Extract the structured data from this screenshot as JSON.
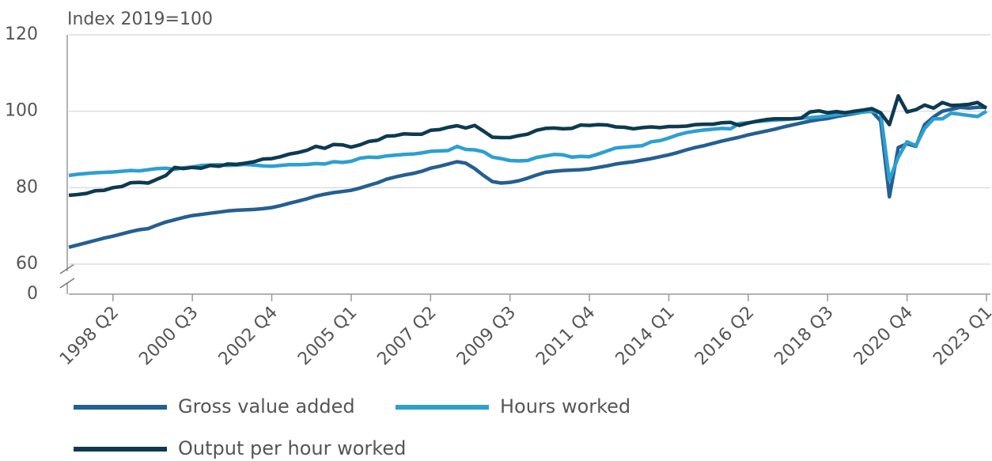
{
  "chart_data": {
    "type": "line",
    "ylabel": "Index 2019=100",
    "categories": [
      null,
      null,
      null,
      null,
      null,
      "1998 Q2",
      null,
      null,
      null,
      null,
      null,
      null,
      null,
      null,
      "2000 Q3",
      null,
      null,
      null,
      null,
      null,
      null,
      null,
      null,
      "2002 Q4",
      null,
      null,
      null,
      null,
      null,
      null,
      null,
      null,
      "2005 Q1",
      null,
      null,
      null,
      null,
      null,
      null,
      null,
      null,
      "2007 Q2",
      null,
      null,
      null,
      null,
      null,
      null,
      null,
      null,
      "2009 Q3",
      null,
      null,
      null,
      null,
      null,
      null,
      null,
      null,
      "2011 Q4",
      null,
      null,
      null,
      null,
      null,
      null,
      null,
      null,
      "2014 Q1",
      null,
      null,
      null,
      null,
      null,
      null,
      null,
      null,
      "2016 Q2",
      null,
      null,
      null,
      null,
      null,
      null,
      null,
      null,
      "2018 Q3",
      null,
      null,
      null,
      null,
      null,
      null,
      null,
      null,
      "2020 Q4",
      null,
      null,
      null,
      null,
      null,
      null,
      null,
      null,
      "2023 Q1"
    ],
    "series": [
      {
        "name": "Gross value added",
        "color": "#255f91",
        "values": [
          64.4,
          65,
          65.6,
          66.2,
          66.8,
          67.3,
          67.9,
          68.5,
          69,
          69.3,
          70.2,
          71,
          71.6,
          72.2,
          72.7,
          73,
          73.3,
          73.6,
          73.9,
          74.1,
          74.2,
          74.3,
          74.5,
          74.8,
          75.3,
          75.9,
          76.5,
          77.1,
          77.8,
          78.3,
          78.7,
          79,
          79.3,
          79.9,
          80.6,
          81.3,
          82.2,
          82.8,
          83.3,
          83.7,
          84.3,
          85.1,
          85.6,
          86.2,
          86.8,
          86.4,
          85,
          83.2,
          81.6,
          81.2,
          81.4,
          81.8,
          82.5,
          83.3,
          84,
          84.3,
          84.5,
          84.6,
          84.7,
          84.9,
          85.3,
          85.7,
          86.2,
          86.5,
          86.8,
          87.2,
          87.6,
          88.1,
          88.6,
          89.2,
          89.9,
          90.5,
          91,
          91.6,
          92.2,
          92.7,
          93.2,
          93.8,
          94.3,
          94.8,
          95.3,
          95.9,
          96.4,
          96.9,
          97.4,
          97.8,
          98.1,
          98.6,
          99,
          99.4,
          99.8,
          100,
          97.5,
          77.6,
          90.5,
          91.5,
          90.8,
          96.5,
          98.5,
          100,
          100.5,
          101,
          100.8,
          101,
          101
        ]
      },
      {
        "name": "Hours worked",
        "color": "#2e9fd1",
        "values": [
          83.2,
          83.5,
          83.7,
          83.9,
          84,
          84.1,
          84.3,
          84.5,
          84.4,
          84.7,
          85,
          85.1,
          84.8,
          85.2,
          85.4,
          85.8,
          85.9,
          86,
          85.8,
          85.9,
          86.1,
          85.9,
          85.7,
          85.6,
          85.8,
          86,
          86,
          86.1,
          86.3,
          86.2,
          86.8,
          86.6,
          86.9,
          87.7,
          88,
          87.9,
          88.3,
          88.5,
          88.7,
          88.8,
          89.1,
          89.5,
          89.6,
          89.7,
          90.8,
          90,
          89.9,
          89.4,
          88,
          87.6,
          87.1,
          87,
          87.1,
          87.9,
          88.3,
          88.7,
          88.6,
          88,
          88.2,
          88.1,
          88.8,
          89.6,
          90.4,
          90.6,
          90.8,
          91,
          92,
          92.3,
          93,
          93.8,
          94.4,
          94.8,
          95.1,
          95.3,
          95.5,
          95.4,
          96.8,
          97,
          97.3,
          97.5,
          97.7,
          97.8,
          98,
          98.2,
          98.3,
          98.5,
          98.8,
          99.1,
          99.4,
          99.6,
          99.8,
          100,
          99.5,
          82,
          88,
          92,
          91,
          95.5,
          98,
          98,
          99.5,
          99.2,
          98.9,
          98.6,
          100
        ]
      },
      {
        "name": "Output per hour worked",
        "color": "#0d3a51",
        "values": [
          78,
          78.2,
          78.5,
          79.2,
          79.3,
          80,
          80.3,
          81.3,
          81.4,
          81.2,
          82.2,
          83.2,
          85.3,
          85,
          85.3,
          85.1,
          85.8,
          85.6,
          86.2,
          86.1,
          86.4,
          86.8,
          87.5,
          87.6,
          88.1,
          88.8,
          89.2,
          89.8,
          90.8,
          90.3,
          91.3,
          91.2,
          90.6,
          91.2,
          92.1,
          92.4,
          93.5,
          93.6,
          94.1,
          94,
          94,
          95,
          95.2,
          95.8,
          96.2,
          95.6,
          96.3,
          94.8,
          93.2,
          93.1,
          93.1,
          93.6,
          94,
          95,
          95.5,
          95.6,
          95.4,
          95.5,
          96.4,
          96.3,
          96.5,
          96.4,
          95.9,
          95.8,
          95.4,
          95.7,
          95.9,
          95.7,
          96,
          96,
          96.1,
          96.5,
          96.6,
          96.6,
          97,
          97.1,
          96.3,
          96.9,
          97.4,
          97.8,
          98,
          98,
          98,
          98.2,
          99.8,
          100.1,
          99.6,
          99.9,
          99.6,
          100,
          100.3,
          100.7,
          99.6,
          96.5,
          104,
          99.8,
          100.4,
          101.6,
          100.8,
          102.3,
          101.5,
          101.6,
          101.8,
          102.3,
          100.8
        ]
      }
    ],
    "ylim": [
      60,
      120
    ],
    "yticks": [
      0,
      60,
      80,
      100,
      120
    ],
    "y_axis_break": true,
    "grid": true
  }
}
